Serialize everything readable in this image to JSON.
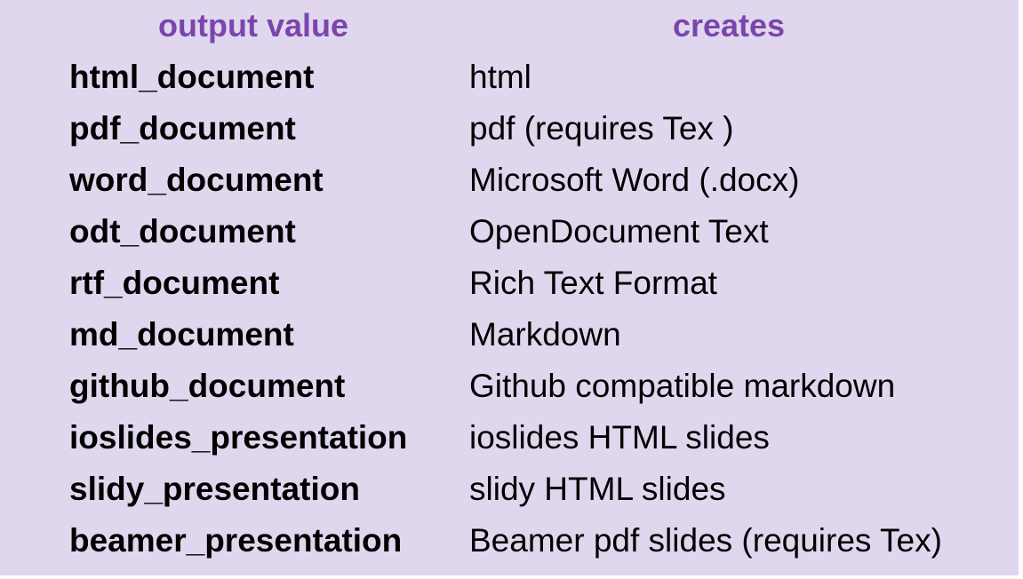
{
  "table": {
    "headers": [
      "output value",
      "creates"
    ],
    "rows": [
      {
        "output": "html_document",
        "creates": "html"
      },
      {
        "output": "pdf_document",
        "creates": "pdf (requires Tex )"
      },
      {
        "output": "word_document",
        "creates": "Microsoft Word (.docx)"
      },
      {
        "output": "odt_document",
        "creates": "OpenDocument Text"
      },
      {
        "output": "rtf_document",
        "creates": "Rich Text Format"
      },
      {
        "output": "md_document",
        "creates": "Markdown"
      },
      {
        "output": "github_document",
        "creates": "Github compatible markdown"
      },
      {
        "output": "ioslides_presentation",
        "creates": "ioslides HTML slides"
      },
      {
        "output": "slidy_presentation",
        "creates": "slidy HTML slides"
      },
      {
        "output": "beamer_presentation",
        "creates": "Beamer pdf slides (requires Tex)"
      }
    ]
  },
  "colors": {
    "background": "#e0d7ee",
    "header_text": "#7b45ad",
    "body_text": "#000000"
  }
}
